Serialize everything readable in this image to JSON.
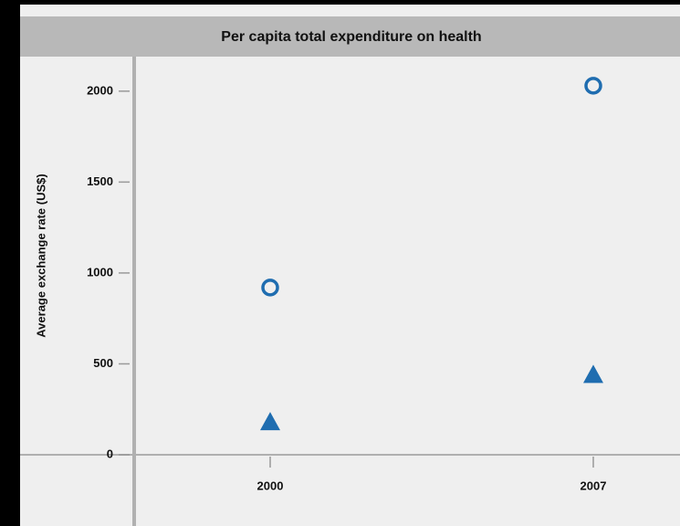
{
  "chart_data": {
    "type": "scatter",
    "title": "Per capita total expenditure on health",
    "y_label": "Average exchange rate (US$)",
    "categories": [
      "2000",
      "2007"
    ],
    "series": [
      {
        "marker": "circle",
        "color": "#1f6db0",
        "values": [
          920,
          2030
        ]
      },
      {
        "marker": "triangle",
        "color": "#1f6db0",
        "values": [
          180,
          440
        ]
      }
    ],
    "ylim": [
      0,
      2190
    ],
    "yticks": [
      0,
      500,
      1000,
      1500,
      2000
    ]
  }
}
